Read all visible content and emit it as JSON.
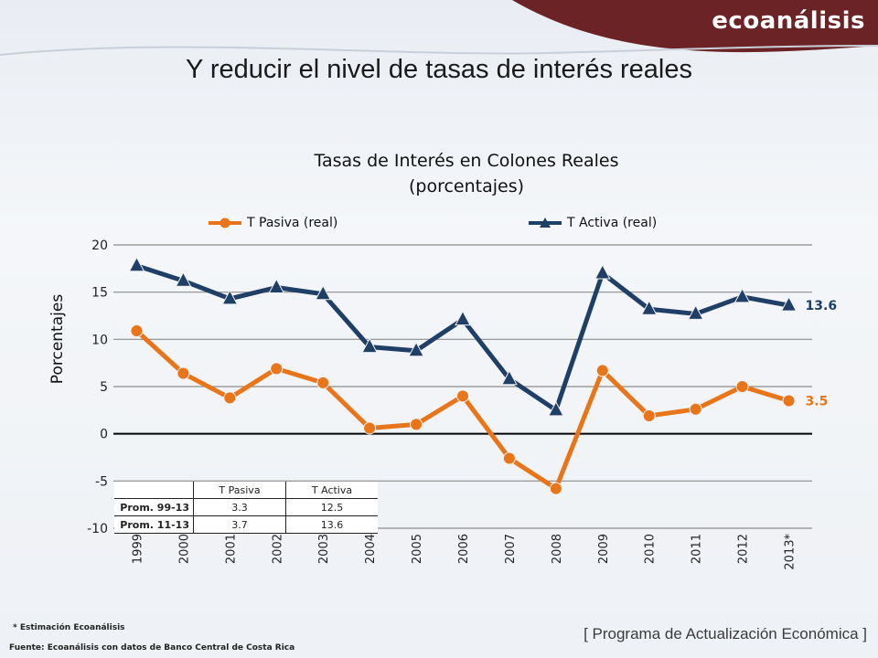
{
  "brand": "ecoanálisis",
  "slide_title": "Y reducir el nivel de tasas de interés reales",
  "colors": {
    "header_band": "#6b2326",
    "pasiva": "#e8751a",
    "activa": "#1f3f66",
    "grid": "#8c8c8c"
  },
  "chart_data": {
    "type": "line",
    "title": "Tasas de Interés en Colones Reales",
    "subtitle": "(porcentajes)",
    "ylabel": "Porcentajes",
    "xlabel": "",
    "ylim": [
      -10,
      20
    ],
    "yticks": [
      "20",
      "15",
      "10",
      "5",
      "0",
      "-5",
      "-10"
    ],
    "categories": [
      "1999",
      "2000",
      "2001",
      "2002",
      "2003",
      "2004",
      "2005",
      "2006",
      "2007",
      "2008",
      "2009",
      "2010",
      "2011",
      "2012",
      "2013*"
    ],
    "series": [
      {
        "name": "T Pasiva (real)",
        "color": "#e8751a",
        "marker": "circle",
        "values": [
          10.9,
          6.4,
          3.8,
          6.9,
          5.4,
          0.6,
          1.0,
          4.0,
          -2.6,
          -5.8,
          6.7,
          1.9,
          2.6,
          5.0,
          3.5
        ],
        "end_label": "3.5"
      },
      {
        "name": "T Activa (real)",
        "color": "#1f3f66",
        "marker": "triangle",
        "values": [
          17.8,
          16.2,
          14.3,
          15.5,
          14.8,
          9.2,
          8.8,
          12.1,
          5.8,
          2.5,
          17.0,
          13.2,
          12.7,
          14.5,
          13.6
        ],
        "end_label": "13.6"
      }
    ],
    "grid": true,
    "legend": "top"
  },
  "avg_table": {
    "headers": [
      "",
      "T Pasiva",
      "T Activa"
    ],
    "rows": [
      {
        "label": "Prom. 99-13",
        "pasiva": "3.3",
        "activa": "12.5"
      },
      {
        "label": "Prom. 11-13",
        "pasiva": "3.7",
        "activa": "13.6"
      }
    ]
  },
  "footnote": "* Estimación Ecoanálisis",
  "source": "Fuente: Ecoanálisis con datos de Banco Central de Costa Rica",
  "program": "[ Programa de Actualización Económica ]"
}
